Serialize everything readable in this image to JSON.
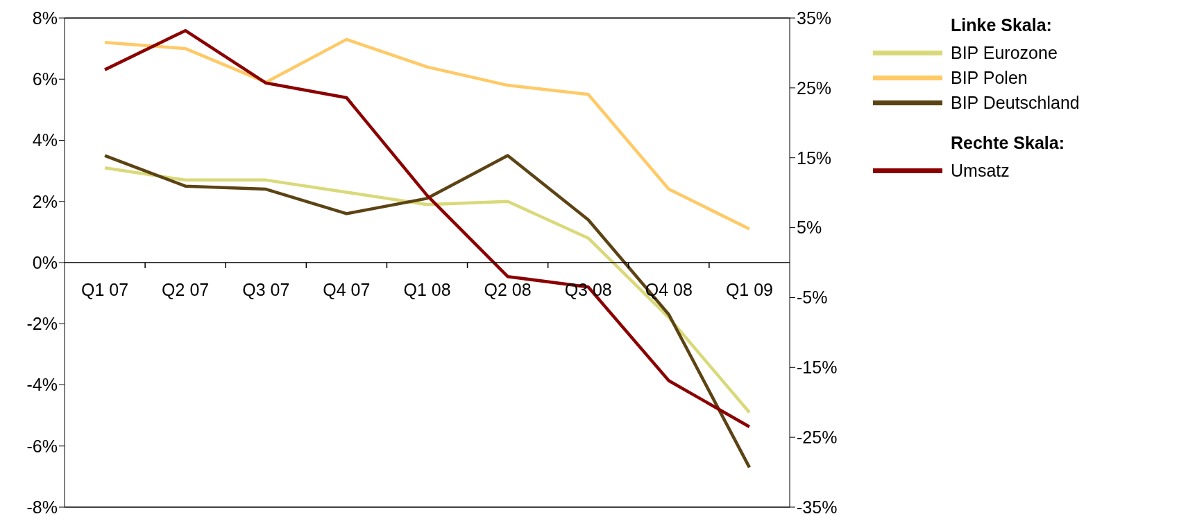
{
  "chart_data": {
    "type": "line",
    "categories": [
      "Q1 07",
      "Q2 07",
      "Q3 07",
      "Q4 07",
      "Q1 08",
      "Q2 08",
      "Q3 08",
      "Q4 08",
      "Q1 09"
    ],
    "series": [
      {
        "name": "BIP Eurozone",
        "color": "#d9d97a",
        "values": [
          3.1,
          2.7,
          2.7,
          2.3,
          1.9,
          2.0,
          0.8,
          -1.8,
          -4.9
        ]
      },
      {
        "name": "BIP Polen",
        "color": "#ffc966",
        "values": [
          7.2,
          7.0,
          5.9,
          7.3,
          6.4,
          5.8,
          5.5,
          2.4,
          1.1
        ]
      },
      {
        "name": "BIP Deutschland",
        "color": "#5c4314",
        "values": [
          3.5,
          2.5,
          2.4,
          1.6,
          2.1,
          3.5,
          1.4,
          -1.7,
          -6.7
        ]
      },
      {
        "name": "Umsatz",
        "color": "#8b0000",
        "axis": "y2",
        "values": [
          27.6,
          33.2,
          25.7,
          23.6,
          9.6,
          -2.0,
          -3.5,
          -16.9,
          -23.5
        ]
      }
    ],
    "ylim": [
      -8,
      8
    ],
    "yticks": [
      {
        "value": -8,
        "label": "-8%"
      },
      {
        "value": -6,
        "label": "-6%"
      },
      {
        "value": -4,
        "label": "-4%"
      },
      {
        "value": -2,
        "label": "-2%"
      },
      {
        "value": 0,
        "label": "0%"
      },
      {
        "value": 2,
        "label": "2%"
      },
      {
        "value": 4,
        "label": "4%"
      },
      {
        "value": 6,
        "label": "6%"
      },
      {
        "value": 8,
        "label": "8%"
      }
    ],
    "y2lim": [
      -35,
      35
    ],
    "y2ticks": [
      {
        "value": -35,
        "label": "-35%"
      },
      {
        "value": -25,
        "label": "-25%"
      },
      {
        "value": -15,
        "label": "-15%"
      },
      {
        "value": -5,
        "label": "-5%"
      },
      {
        "value": 5,
        "label": "5%"
      },
      {
        "value": 15,
        "label": "15%"
      },
      {
        "value": 25,
        "label": "25%"
      },
      {
        "value": 35,
        "label": "35%"
      }
    ],
    "annotations": [
      "Linke Skala:",
      "Rechte Skala:"
    ],
    "legend": "top right",
    "grid": false,
    "marker": "none",
    "line_style": "solid"
  }
}
